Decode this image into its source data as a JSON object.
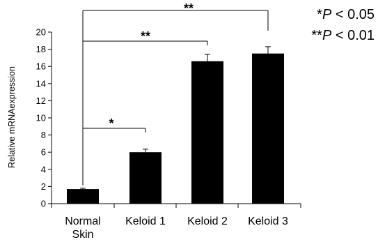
{
  "chart_data": {
    "type": "bar",
    "categories": [
      "Normal Skin",
      "Keloid 1",
      "Keloid 2",
      "Keloid 3"
    ],
    "category_lines": [
      [
        "Normal",
        "Skin"
      ],
      [
        "Keloid 1"
      ],
      [
        "Keloid 2"
      ],
      [
        "Keloid 3"
      ]
    ],
    "values": [
      1.7,
      6.0,
      16.6,
      17.5
    ],
    "errors": [
      0.1,
      0.35,
      0.8,
      0.8
    ],
    "ylabel": "Relative mRNAexpression",
    "xlabel": "",
    "title": "",
    "ylim": [
      0,
      20
    ],
    "yticks": [
      0,
      2,
      4,
      6,
      8,
      10,
      12,
      14,
      16,
      18,
      20
    ],
    "grid": false,
    "bar_color": "#000000",
    "significance": [
      {
        "from": 0,
        "to": 1,
        "label": "*"
      },
      {
        "from": 0,
        "to": 2,
        "label": "**"
      },
      {
        "from": 0,
        "to": 3,
        "label": "**"
      }
    ],
    "legend": [
      {
        "stars": "*",
        "italic": "P",
        "text": " < 0.05"
      },
      {
        "stars": "**",
        "italic": "P",
        "text": " < 0.01"
      }
    ]
  }
}
